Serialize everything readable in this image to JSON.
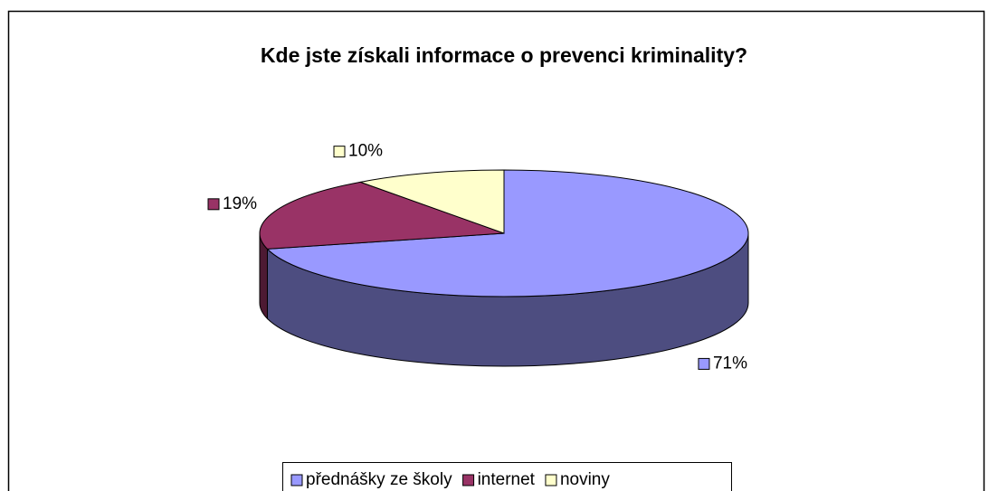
{
  "chart_data": {
    "type": "pie",
    "title": "Kde jste získali informace o prevenci kriminality?",
    "categories": [
      "přednášky ze školy",
      "internet",
      "noviny"
    ],
    "values": [
      71,
      19,
      10
    ],
    "value_labels": [
      "71%",
      "19%",
      "10%"
    ],
    "colors": [
      "#9999ff",
      "#993366",
      "#ffffcc"
    ],
    "legend": "bottom"
  }
}
